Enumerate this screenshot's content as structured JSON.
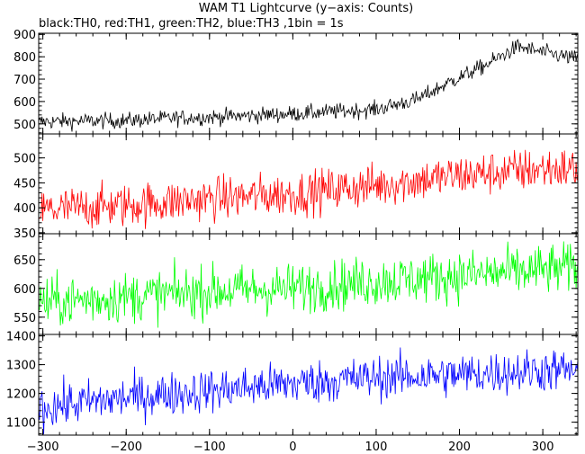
{
  "chart_data": {
    "type": "line",
    "title": "WAM T1 Lightcurve (y−axis: Counts)",
    "subtitle": "black:TH0, red:TH1, green:TH2, blue:TH3 ,1bin = 1s",
    "xlim": [
      -305,
      342
    ],
    "x_ticks": [
      -300,
      -200,
      -100,
      0,
      100,
      200,
      300
    ],
    "grid": false,
    "panels": [
      {
        "name": "TH0",
        "color": "#000000",
        "ylim": [
          455,
          905
        ],
        "y_ticks": [
          500,
          600,
          700,
          800,
          900
        ],
        "trend": [
          [
            -305,
            510
          ],
          [
            -200,
            515
          ],
          [
            -150,
            525
          ],
          [
            -100,
            530
          ],
          [
            0,
            545
          ],
          [
            100,
            565
          ],
          [
            150,
            610
          ],
          [
            190,
            690
          ],
          [
            230,
            760
          ],
          [
            270,
            845
          ],
          [
            300,
            820
          ],
          [
            342,
            790
          ]
        ],
        "noise": 18
      },
      {
        "name": "TH1",
        "color": "#ff0000",
        "ylim": [
          348,
          548
        ],
        "y_ticks": [
          350,
          400,
          450,
          500
        ],
        "trend": [
          [
            -305,
            395
          ],
          [
            -200,
            405
          ],
          [
            -100,
            418
          ],
          [
            0,
            428
          ],
          [
            100,
            445
          ],
          [
            200,
            465
          ],
          [
            300,
            478
          ],
          [
            342,
            478
          ]
        ],
        "noise": 22
      },
      {
        "name": "TH2",
        "color": "#00ff00",
        "ylim": [
          520,
          695
        ],
        "y_ticks": [
          550,
          600,
          650
        ],
        "trend": [
          [
            -305,
            575
          ],
          [
            -200,
            585
          ],
          [
            -100,
            595
          ],
          [
            0,
            600
          ],
          [
            100,
            612
          ],
          [
            200,
            622
          ],
          [
            300,
            632
          ],
          [
            342,
            636
          ]
        ],
        "noise": 22
      },
      {
        "name": "TH3",
        "color": "#0000ff",
        "ylim": [
          1055,
          1405
        ],
        "y_ticks": [
          1100,
          1200,
          1300,
          1400
        ],
        "trend": [
          [
            -305,
            1150
          ],
          [
            -200,
            1185
          ],
          [
            -100,
            1210
          ],
          [
            0,
            1235
          ],
          [
            100,
            1255
          ],
          [
            200,
            1265
          ],
          [
            300,
            1280
          ],
          [
            342,
            1280
          ]
        ],
        "noise": 38
      }
    ]
  }
}
